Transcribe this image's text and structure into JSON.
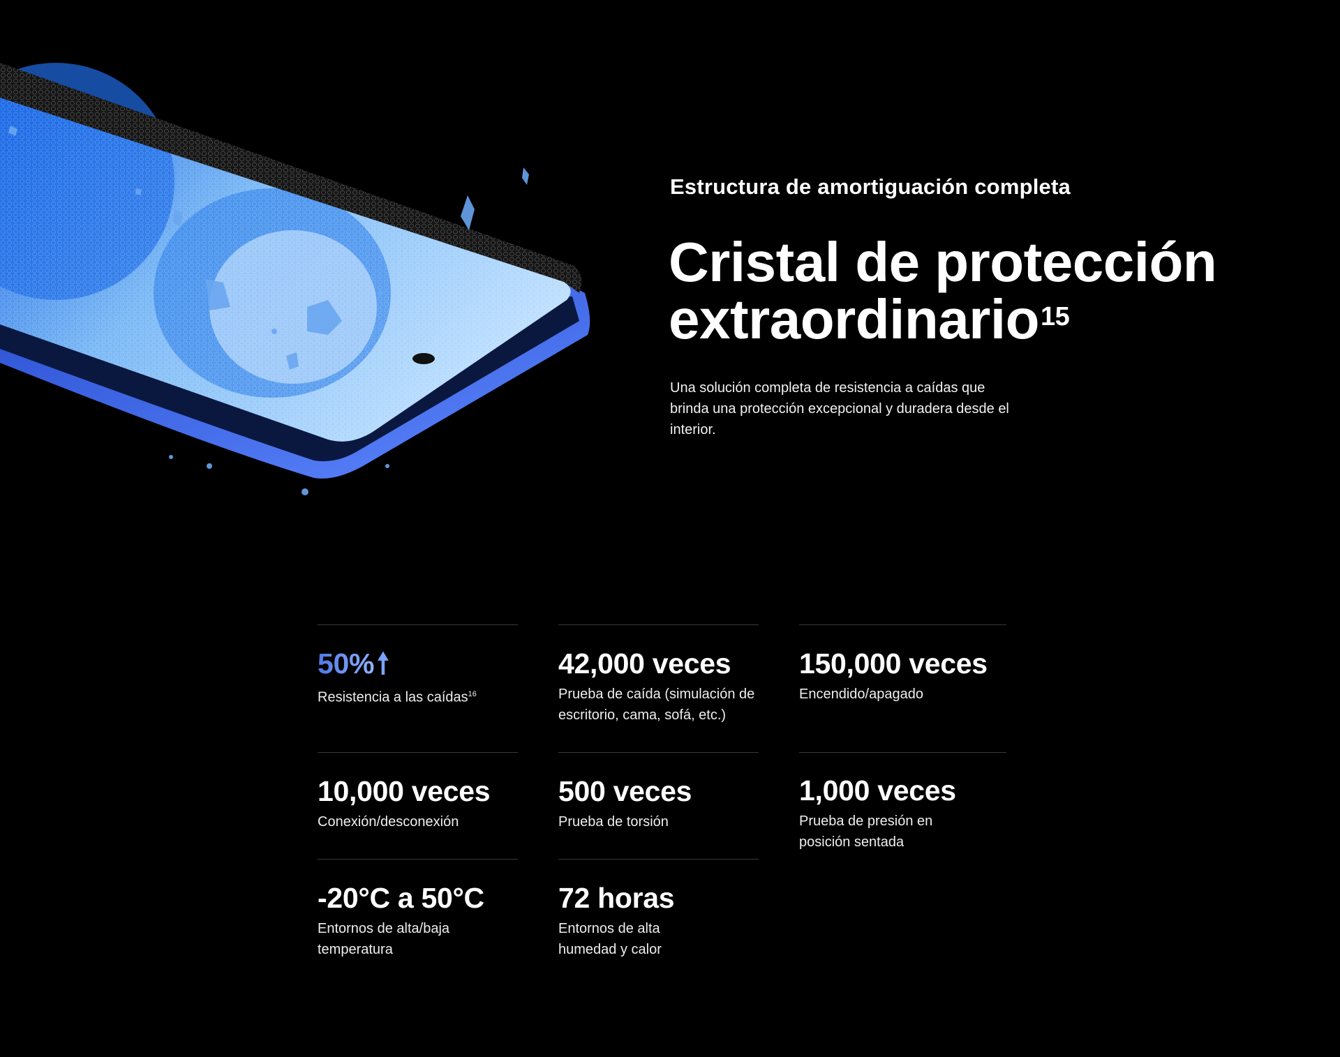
{
  "hero": {
    "eyebrow": "Estructura de amortiguación completa",
    "title_line1": "Cristal de protección",
    "title_line2": "extraordinario",
    "title_footnote": "15",
    "description": "Una solución completa de resistencia a caídas que brinda una protección excepcional y duradera desde el interior.",
    "image_icon": "phone-with-protective-glass-and-ice-shards"
  },
  "colors": {
    "background": "#000000",
    "accent": "#5b82ee",
    "text": "#ffffff",
    "divider": "#3a3a3a"
  },
  "stats": [
    {
      "value": "50%",
      "icon": "arrow-up-icon",
      "label": "Resistencia a las caídas",
      "footnote": "16"
    },
    {
      "value": "42,000 veces",
      "label": "Prueba de caída (simulación de escritorio, cama, sofá, etc.)"
    },
    {
      "value": "150,000 veces",
      "label": "Encendido/apagado"
    },
    {
      "value": "10,000 veces",
      "label": "Conexión/desconexión"
    },
    {
      "value": "500 veces",
      "label": "Prueba de torsión"
    },
    {
      "value": "1,000 veces",
      "label": "Prueba de presión en posición sentada"
    },
    {
      "value": "-20°C a 50°C",
      "label": "Entornos de alta/baja temperatura"
    },
    {
      "value": "72 horas",
      "label": "Entornos de alta humedad y calor"
    }
  ]
}
